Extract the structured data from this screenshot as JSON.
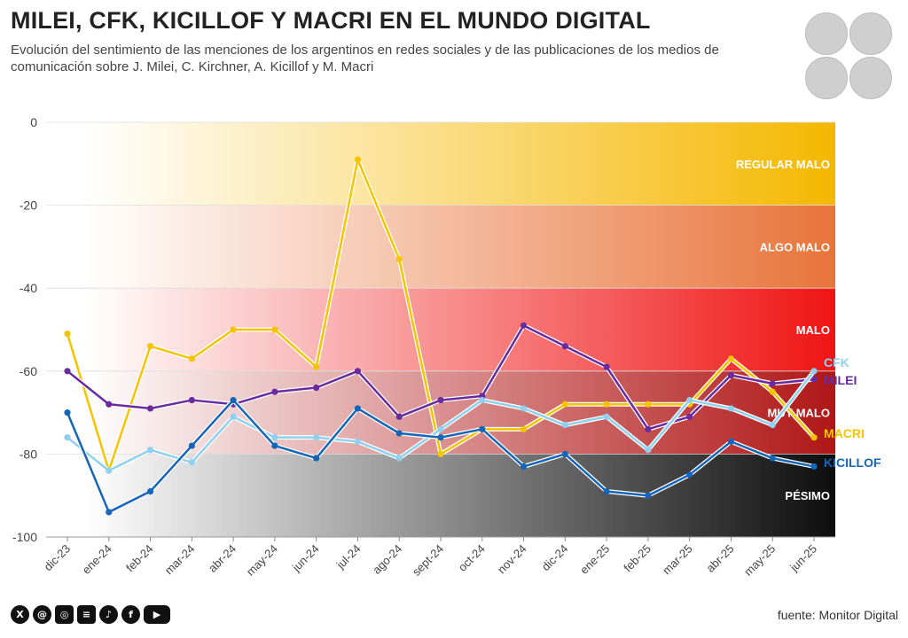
{
  "header": {
    "title": "MILEI, CFK, KICILLOF Y MACRI EN EL MUNDO DIGITAL",
    "subtitle": "Evolución del sentimiento de las menciones de los argentinos en redes sociales y de las publicaciones de los medios de comunicación sobre J. Milei, C. Kirchner, A. Kicillof y M. Macri"
  },
  "avatars": [
    {
      "name": "avatar-milei-icon"
    },
    {
      "name": "avatar-cfk-icon"
    },
    {
      "name": "avatar-kicillof-icon"
    },
    {
      "name": "avatar-macri-icon"
    }
  ],
  "footer": {
    "source": "fuente: Monitor Digital",
    "social_icons": [
      "x-icon",
      "threads-icon",
      "instagram-icon",
      "substack-icon",
      "tiktok-icon",
      "facebook-icon",
      "youtube-icon"
    ]
  },
  "chart_data": {
    "type": "line",
    "title": "MILEI, CFK, KICILLOF Y MACRI EN EL MUNDO DIGITAL",
    "xlabel": "",
    "ylabel": "",
    "ylim": [
      -100,
      0
    ],
    "yticks": [
      0,
      -20,
      -40,
      -60,
      -80,
      -100
    ],
    "grid": true,
    "categories": [
      "dic-23",
      "ene-24",
      "feb-24",
      "mar-24",
      "abr-24",
      "may-24",
      "jun-24",
      "jul-24",
      "ago-24",
      "sept-24",
      "oct-24",
      "nov-24",
      "dic-24",
      "ene-25",
      "feb-25",
      "mar-25",
      "abr-25",
      "may-25",
      "jun-25"
    ],
    "bands": [
      {
        "label": "REGULAR MALO",
        "from": 0,
        "to": -20,
        "color": "#f5b800"
      },
      {
        "label": "ALGO MALO",
        "from": -20,
        "to": -40,
        "color": "#e8743a"
      },
      {
        "label": "MALO",
        "from": -40,
        "to": -60,
        "color": "#f01414"
      },
      {
        "label": "MUY MALO",
        "from": -60,
        "to": -80,
        "color": "#b01616"
      },
      {
        "label": "PÉSIMO",
        "from": -80,
        "to": -100,
        "color": "#0d0d0d"
      }
    ],
    "series": [
      {
        "name": "MACRI",
        "color": "#f5c400",
        "values": [
          -51,
          -84,
          -54,
          -57,
          -50,
          -50,
          -59,
          -9,
          -33,
          -80,
          -74,
          -74,
          -68,
          -68,
          -68,
          -68,
          -57,
          -65,
          -76
        ]
      },
      {
        "name": "MILEI",
        "color": "#6a2b9e",
        "values": [
          -60,
          -68,
          -69,
          -67,
          -68,
          -65,
          -64,
          -60,
          -71,
          -67,
          -66,
          -49,
          -54,
          -59,
          -74,
          -71,
          -61,
          -63,
          -62
        ]
      },
      {
        "name": "CFK",
        "color": "#8fd0ee",
        "values": [
          -76,
          -84,
          -79,
          -82,
          -71,
          -76,
          -76,
          -77,
          -81,
          -74,
          -67,
          -69,
          -73,
          -71,
          -79,
          -67,
          -69,
          -73,
          -60
        ]
      },
      {
        "name": "KICILLOF",
        "color": "#1565b8",
        "values": [
          -70,
          -94,
          -89,
          -78,
          -67,
          -78,
          -81,
          -69,
          -75,
          -76,
          -74,
          -83,
          -80,
          -89,
          -90,
          -85,
          -77,
          -81,
          -83
        ]
      }
    ]
  }
}
